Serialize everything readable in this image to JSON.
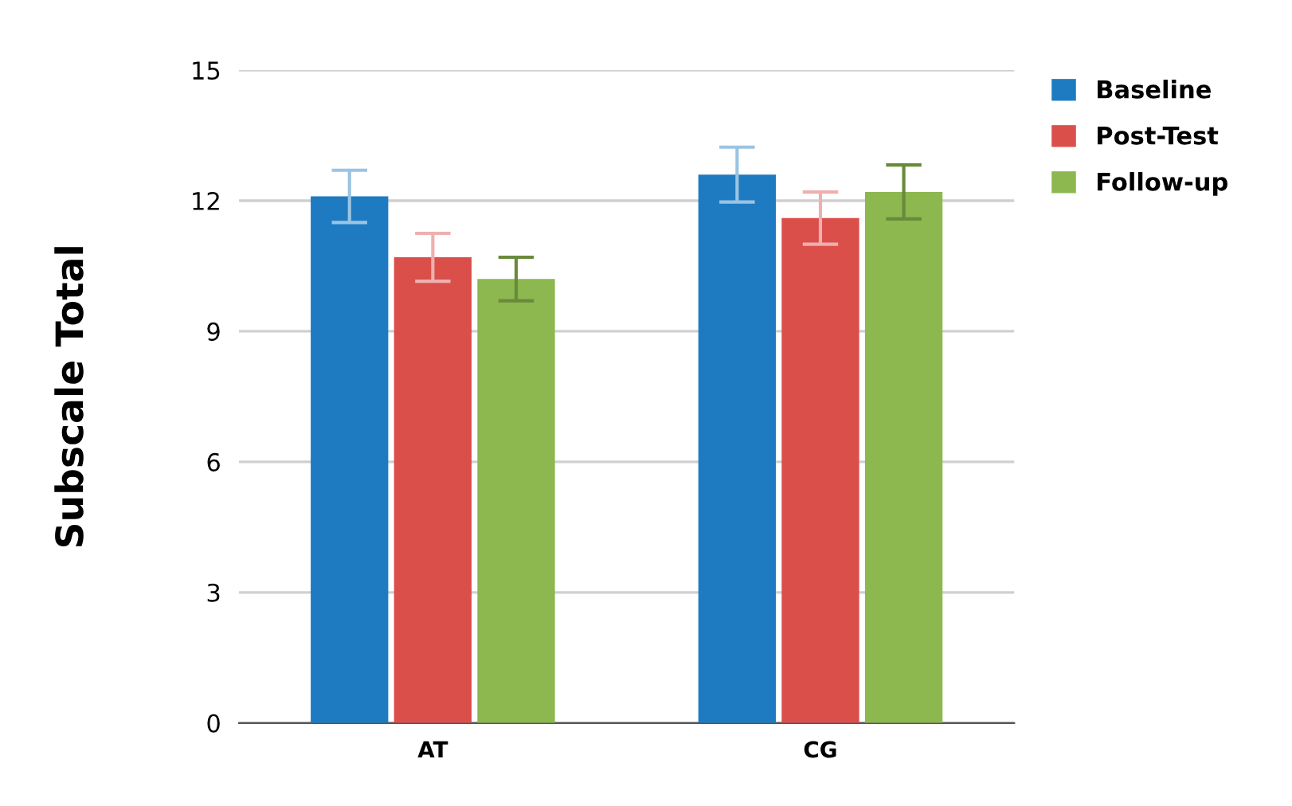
{
  "chart_data": {
    "type": "bar",
    "ylabel": "Subscale Total",
    "categories": [
      "AT",
      "CG"
    ],
    "series": [
      {
        "name": "Baseline",
        "color": "#1f7bc1",
        "values": [
          12.1,
          12.6
        ],
        "errors": [
          0.6,
          0.63
        ]
      },
      {
        "name": "Post-Test",
        "color": "#da4f4a",
        "values": [
          10.7,
          11.6
        ],
        "errors": [
          0.55,
          0.6
        ]
      },
      {
        "name": "Follow-up",
        "color": "#8cb84f",
        "values": [
          10.2,
          12.2
        ],
        "errors": [
          0.5,
          0.62
        ]
      }
    ],
    "ylim": [
      0,
      15
    ],
    "yticks": [
      0,
      3,
      6,
      9,
      12,
      15
    ],
    "grid": "y",
    "legend": "top right"
  }
}
